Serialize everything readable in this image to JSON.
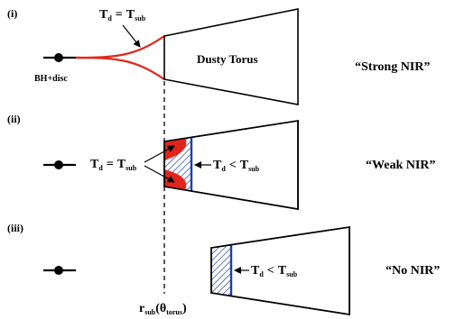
{
  "panels": [
    {
      "id": "i",
      "label": "(i)",
      "td_equals_label": {
        "T": "T",
        "d": "d",
        "eq": "=",
        "T2": "T",
        "sub": "sub"
      },
      "torus_label": "Dusty Torus",
      "bh_label": "BH+disc",
      "regime": "“Strong NIR”"
    },
    {
      "id": "ii",
      "label": "(ii)",
      "td_equals_label": {
        "T": "T",
        "d": "d",
        "eq": "=",
        "T2": "T",
        "sub": "sub"
      },
      "td_less_label": {
        "T": "T",
        "d": "d",
        "lt": "<",
        "T2": "T",
        "sub": "sub"
      },
      "regime": "“Weak NIR”"
    },
    {
      "id": "iii",
      "label": "(iii)",
      "td_less_label": {
        "T": "T",
        "d": "d",
        "lt": "<",
        "T2": "T",
        "sub": "sub"
      },
      "regime": "“No NIR”"
    }
  ],
  "rsub_label": {
    "r": "r",
    "sub": "sub",
    "open": "(",
    "theta": "θ",
    "torus": "torus",
    "close": ")"
  },
  "colors": {
    "line": "#000000",
    "red": "#e0261b",
    "blue": "#1f3fa8"
  }
}
